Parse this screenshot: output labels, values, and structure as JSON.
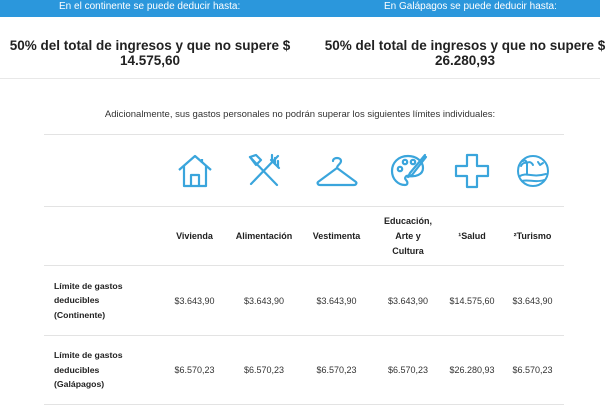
{
  "banner": {
    "left_label": "En el continente se puede deducir hasta:",
    "right_label": "En Galápagos se puede deducir hasta:"
  },
  "limits": {
    "continent_line1": "50% del total de ingresos y que no supere $",
    "continent_line2": "14.575,60",
    "galapagos_line1": "50% del total de ingresos y que no supere $",
    "galapagos_line2": "26.280,93"
  },
  "intro_text": "Adicionalmente, sus gastos personales no podrán superar los siguientes límites individuales:",
  "icons": [
    "house-icon",
    "fork-knife-icon",
    "hanger-icon",
    "palette-icon",
    "cross-icon",
    "tourism-icon"
  ],
  "table": {
    "headers": [
      "Vivienda",
      "Alimentación",
      "Vestimenta",
      "Educación,\nArte y\nCultura",
      "¹Salud",
      "²Turismo"
    ],
    "rows": [
      {
        "label": "Límite de gastos deducibles (Continente)",
        "values": [
          "$3.643,90",
          "$3.643,90",
          "$3.643,90",
          "$3.643,90",
          "$14.575,60",
          "$3.643,90"
        ]
      },
      {
        "label": "Límite de gastos deducibles (Galápagos)",
        "values": [
          "$6.570,23",
          "$6.570,23",
          "$6.570,23",
          "$6.570,23",
          "$26.280,93",
          "$6.570,23"
        ]
      }
    ]
  },
  "colors": {
    "banner": "#2b97dc",
    "icon": "#3aa5dc"
  }
}
